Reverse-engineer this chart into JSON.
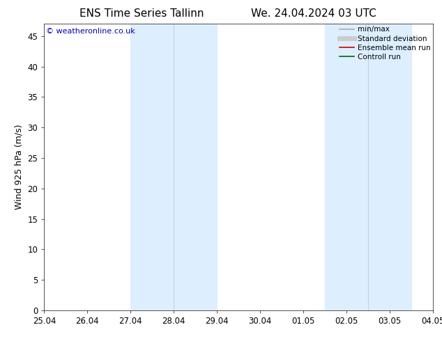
{
  "title_left": "ENS Time Series Tallinn",
  "title_right": "We. 24.04.2024 03 UTC",
  "ylabel": "Wind 925 hPa (m/s)",
  "watermark": "© weatheronline.co.uk",
  "xtick_labels": [
    "25.04",
    "26.04",
    "27.04",
    "28.04",
    "29.04",
    "30.04",
    "01.05",
    "02.05",
    "03.05",
    "04.05"
  ],
  "ytick_values": [
    0,
    5,
    10,
    15,
    20,
    25,
    30,
    35,
    40,
    45
  ],
  "ylim": [
    0,
    47
  ],
  "xlim": [
    0,
    9
  ],
  "shaded_bands": [
    {
      "x_start": 2.0,
      "x_end": 4.0,
      "color": "#ddeeff"
    },
    {
      "x_start": 6.5,
      "x_end": 8.5,
      "color": "#ddeeff"
    }
  ],
  "inner_lines": [
    {
      "x": 3.0,
      "color": "#b8d4e8",
      "lw": 0.8
    },
    {
      "x": 7.5,
      "color": "#b8d4e8",
      "lw": 0.8
    }
  ],
  "legend_items": [
    {
      "label": "min/max",
      "color": "#aaaaaa",
      "lw": 1.2
    },
    {
      "label": "Standard deviation",
      "color": "#cccccc",
      "lw": 5
    },
    {
      "label": "Ensemble mean run",
      "color": "#cc0000",
      "lw": 1.2
    },
    {
      "label": "Controll run",
      "color": "#006600",
      "lw": 1.2
    }
  ],
  "background_color": "#ffffff",
  "watermark_color": "#0000bb",
  "title_fontsize": 11,
  "label_fontsize": 9,
  "tick_fontsize": 8.5,
  "legend_fontsize": 7.5
}
